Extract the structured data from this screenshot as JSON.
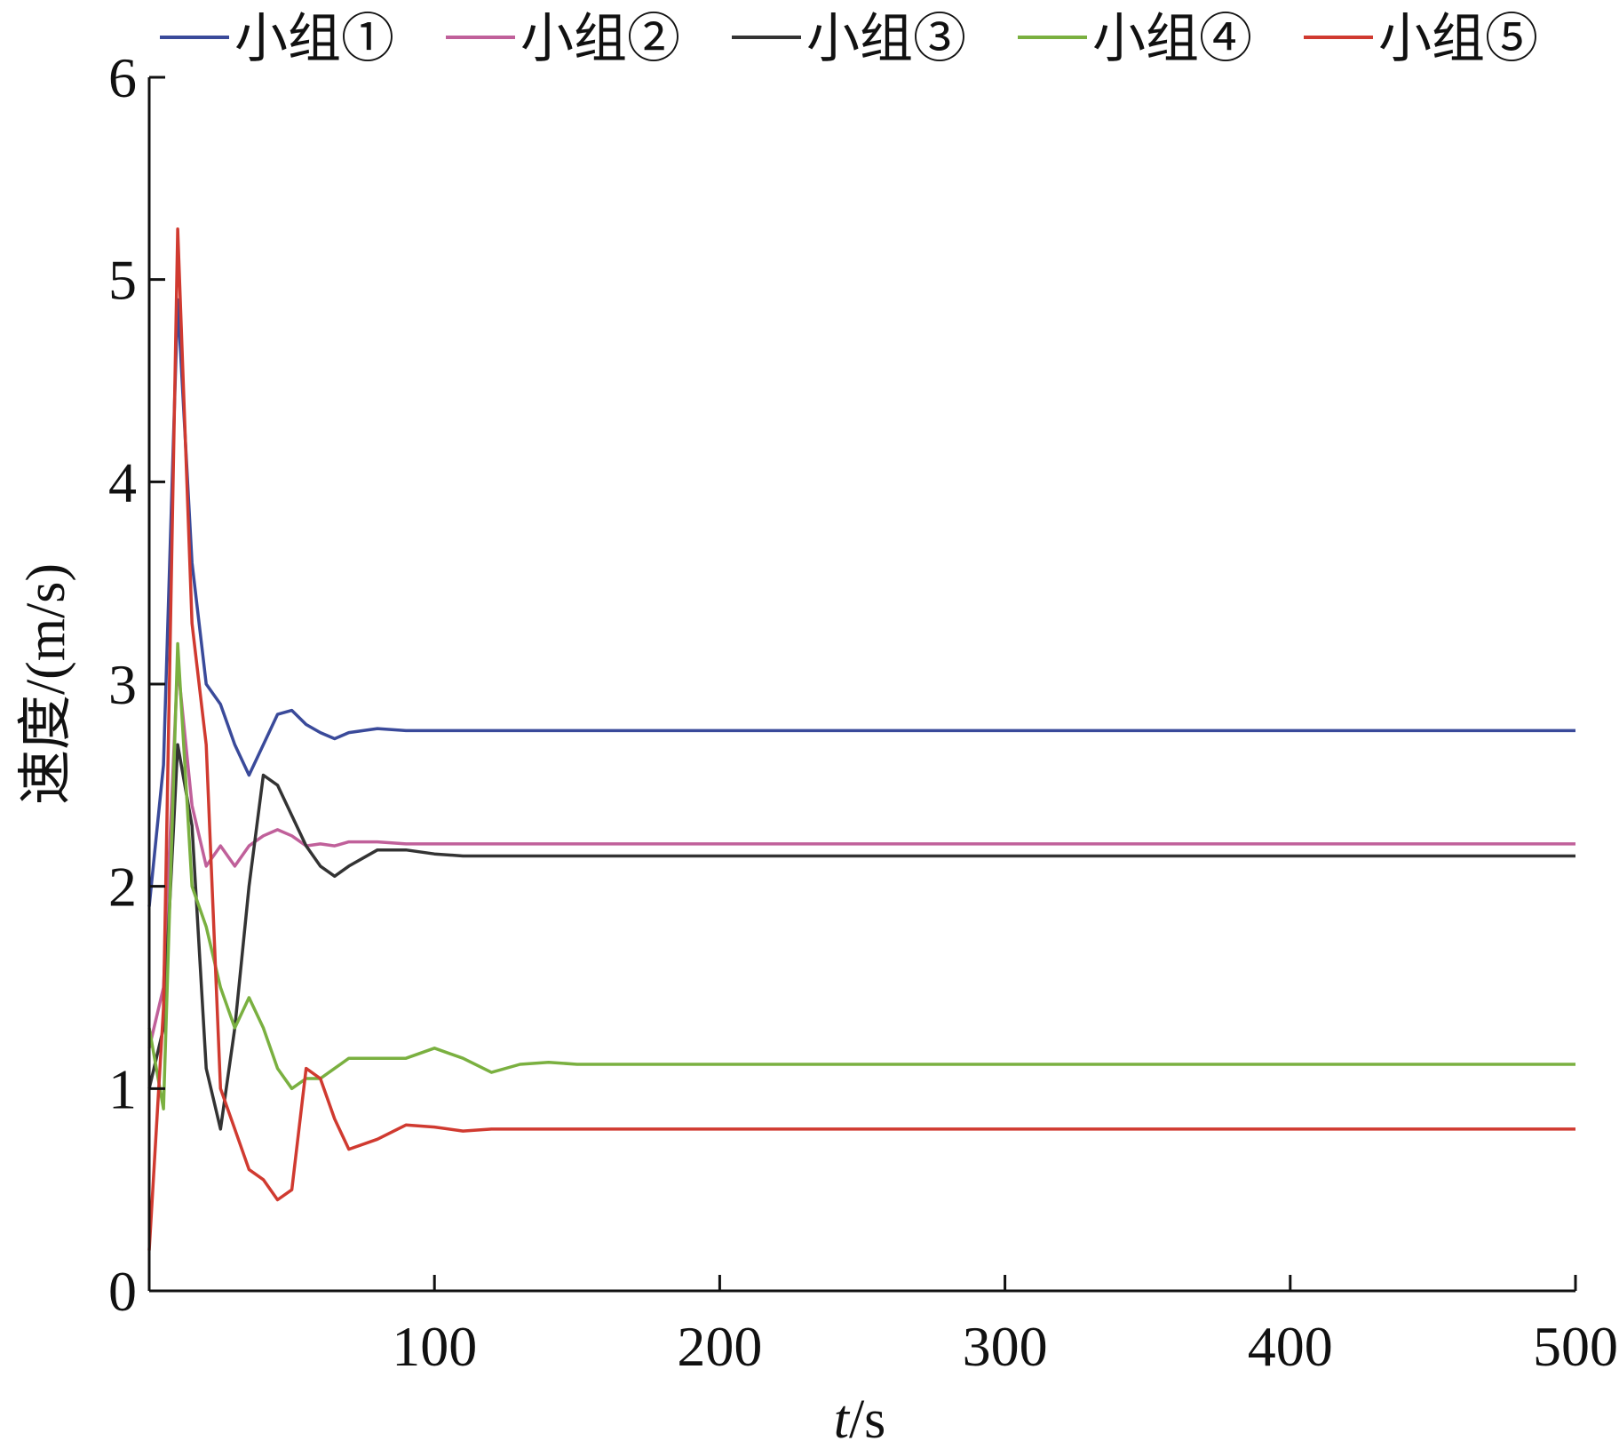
{
  "chart_data": {
    "type": "line",
    "title": "",
    "xlabel": {
      "var": "t",
      "unit": "/s"
    },
    "ylabel": "速度/(m/s)",
    "xlim": [
      0,
      500
    ],
    "ylim": [
      0,
      6
    ],
    "x_ticks": [
      100,
      200,
      300,
      400,
      500
    ],
    "y_ticks": [
      0,
      1,
      2,
      3,
      4,
      5,
      6
    ],
    "grid": false,
    "legend_position": "top",
    "legend": [
      {
        "name": "小组①",
        "color": "#3a4a9a"
      },
      {
        "name": "小组②",
        "color": "#c0609a"
      },
      {
        "name": "小组③",
        "color": "#333333"
      },
      {
        "name": "小组④",
        "color": "#7ab040"
      },
      {
        "name": "小组⑤",
        "color": "#d03a30"
      }
    ],
    "series": [
      {
        "name": "小组①",
        "color": "#3a4a9a",
        "x": [
          0,
          5,
          10,
          15,
          20,
          25,
          30,
          35,
          40,
          45,
          50,
          55,
          60,
          65,
          70,
          75,
          80,
          90,
          100,
          110,
          500
        ],
        "y": [
          1.9,
          2.6,
          4.9,
          3.6,
          3.0,
          2.9,
          2.7,
          2.55,
          2.7,
          2.85,
          2.87,
          2.8,
          2.76,
          2.73,
          2.76,
          2.77,
          2.78,
          2.77,
          2.77,
          2.77,
          2.77
        ]
      },
      {
        "name": "小组②",
        "color": "#c0609a",
        "x": [
          0,
          5,
          10,
          15,
          20,
          25,
          30,
          35,
          40,
          45,
          50,
          55,
          60,
          65,
          70,
          80,
          90,
          100,
          500
        ],
        "y": [
          1.2,
          1.5,
          3.1,
          2.4,
          2.1,
          2.2,
          2.1,
          2.2,
          2.25,
          2.28,
          2.25,
          2.2,
          2.21,
          2.2,
          2.22,
          2.22,
          2.21,
          2.21,
          2.21
        ]
      },
      {
        "name": "小组③",
        "color": "#333333",
        "x": [
          0,
          5,
          10,
          15,
          20,
          25,
          30,
          35,
          40,
          45,
          50,
          55,
          60,
          65,
          70,
          80,
          90,
          100,
          110,
          120,
          500
        ],
        "y": [
          1.0,
          1.3,
          2.7,
          2.3,
          1.1,
          0.8,
          1.3,
          2.0,
          2.55,
          2.5,
          2.35,
          2.2,
          2.1,
          2.05,
          2.1,
          2.18,
          2.18,
          2.16,
          2.15,
          2.15,
          2.15
        ]
      },
      {
        "name": "小组④",
        "color": "#7ab040",
        "x": [
          0,
          5,
          10,
          15,
          20,
          25,
          30,
          35,
          40,
          45,
          50,
          55,
          60,
          65,
          70,
          80,
          90,
          100,
          110,
          120,
          130,
          140,
          150,
          500
        ],
        "y": [
          1.3,
          0.9,
          3.2,
          2.0,
          1.8,
          1.5,
          1.3,
          1.45,
          1.3,
          1.1,
          1.0,
          1.05,
          1.05,
          1.1,
          1.15,
          1.15,
          1.15,
          1.2,
          1.15,
          1.08,
          1.12,
          1.13,
          1.12,
          1.12
        ]
      },
      {
        "name": "小组⑤",
        "color": "#d03a30",
        "x": [
          0,
          5,
          10,
          15,
          20,
          25,
          30,
          35,
          40,
          45,
          50,
          55,
          60,
          65,
          70,
          80,
          90,
          100,
          110,
          120,
          130,
          500
        ],
        "y": [
          0.2,
          1.4,
          5.25,
          3.3,
          2.7,
          1.0,
          0.8,
          0.6,
          0.55,
          0.45,
          0.5,
          1.1,
          1.05,
          0.85,
          0.7,
          0.75,
          0.82,
          0.81,
          0.79,
          0.8,
          0.8,
          0.8
        ]
      }
    ]
  }
}
